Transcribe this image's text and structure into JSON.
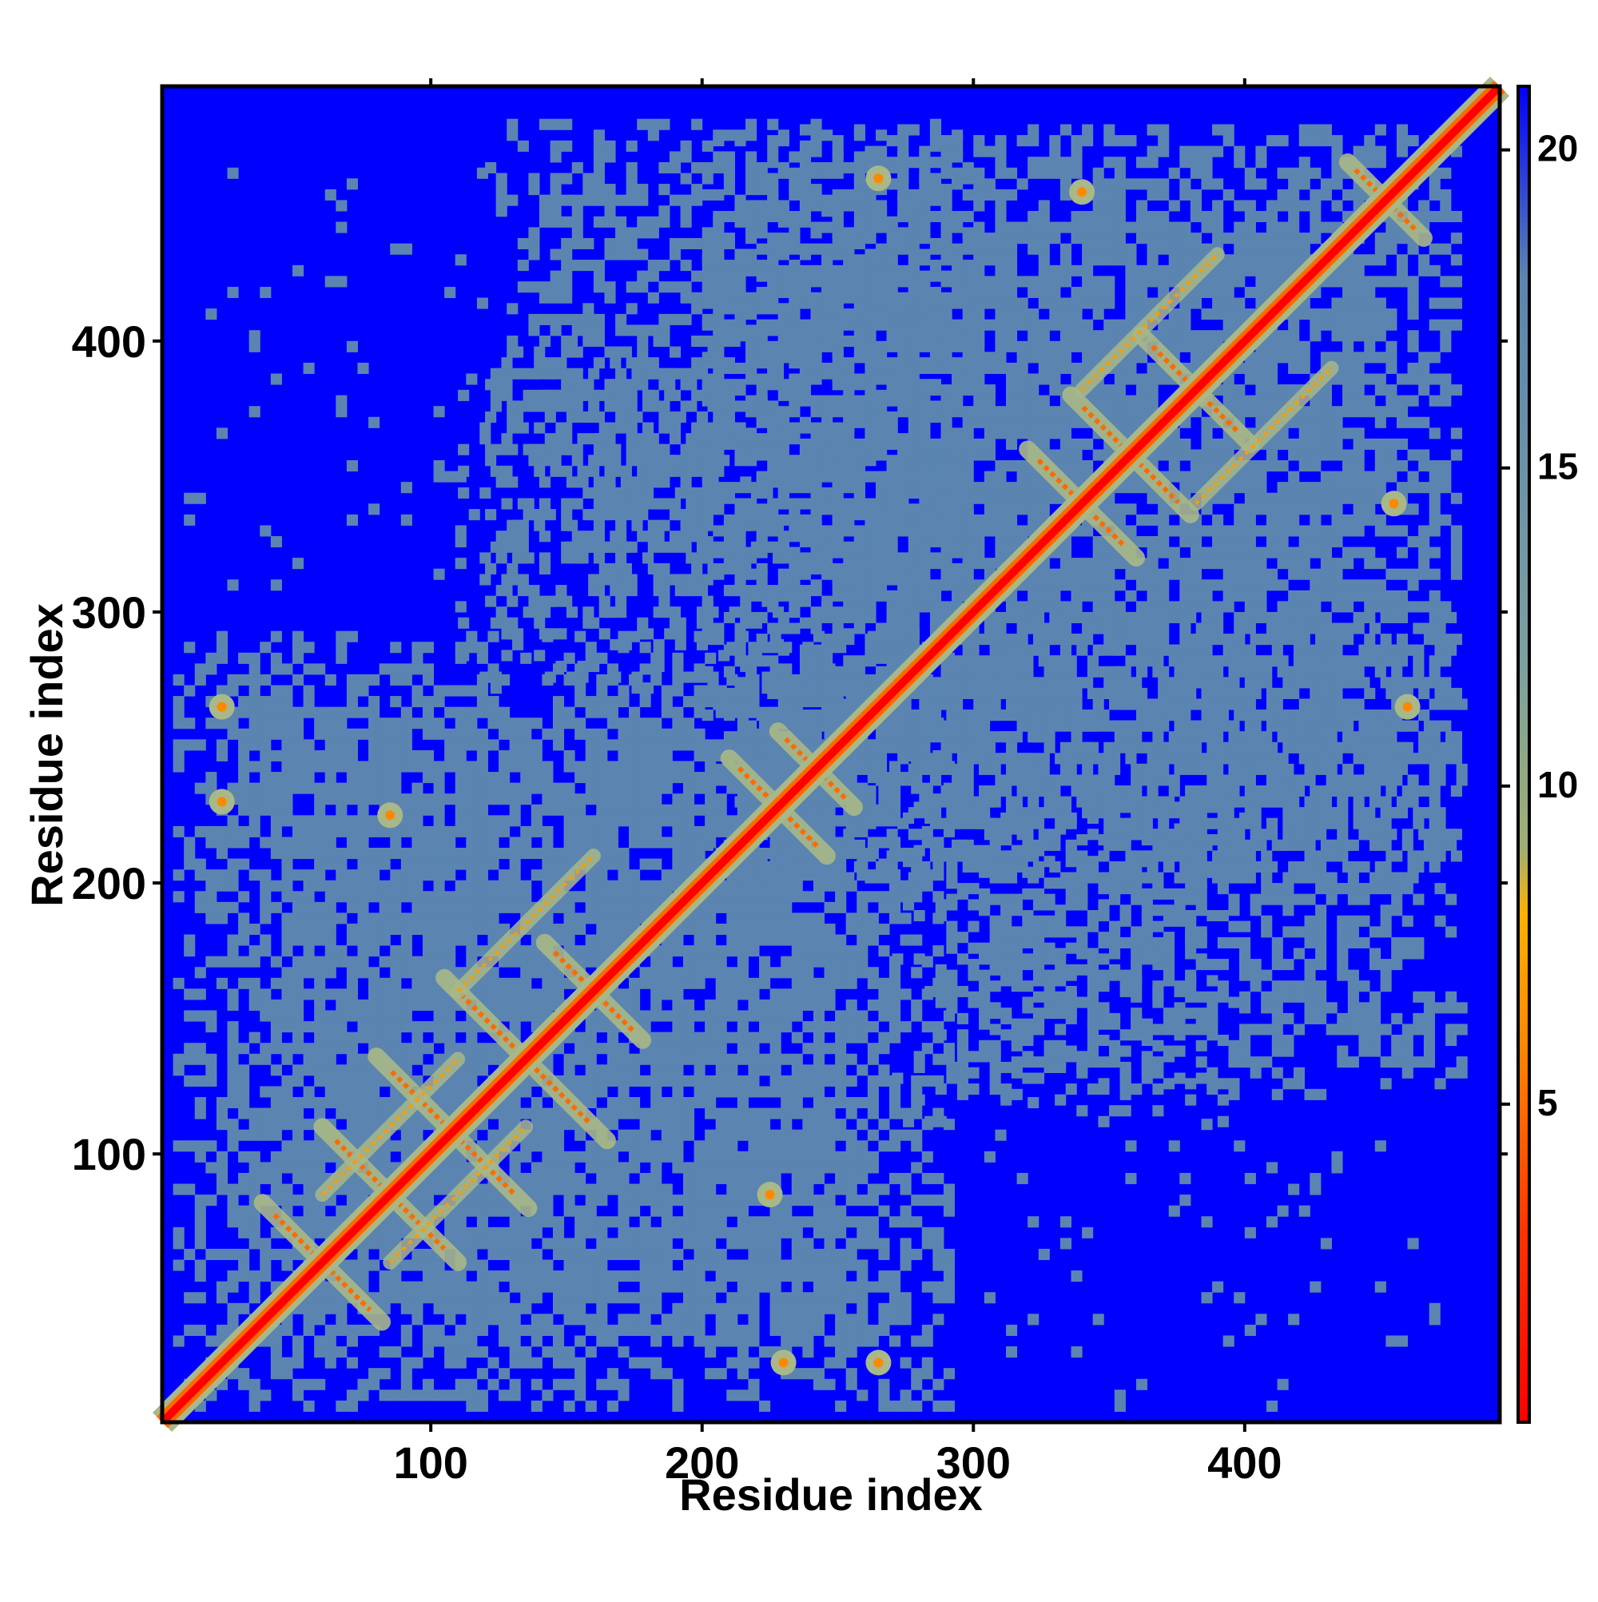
{
  "chart_data": {
    "type": "heatmap",
    "title": "",
    "xlabel": "Residue index",
    "ylabel": "Residue index",
    "xlim": [
      1,
      494
    ],
    "ylim": [
      1,
      494
    ],
    "x_ticks": [
      100,
      200,
      300,
      400
    ],
    "y_ticks": [
      100,
      200,
      300,
      400
    ],
    "colorbar": {
      "min": 0,
      "max": 21,
      "ticks": [
        5,
        10,
        15,
        20
      ],
      "stops": [
        {
          "value": 0,
          "color": "#ff0000"
        },
        {
          "value": 3,
          "color": "#ff3300"
        },
        {
          "value": 6,
          "color": "#ff8800"
        },
        {
          "value": 8,
          "color": "#ffb000"
        },
        {
          "value": 9,
          "color": "#a0b070"
        },
        {
          "value": 12,
          "color": "#7aa0a0"
        },
        {
          "value": 18,
          "color": "#5b85b0"
        },
        {
          "value": 21,
          "color": "#0000ff"
        }
      ]
    },
    "background_color": "#0000ff",
    "contact_color": "#5b85b0",
    "near_color": "#a8b888",
    "diagonal_color": "#ff0000",
    "contact_regions": [
      {
        "x": [
          5,
          290
        ],
        "y": [
          5,
          290
        ],
        "density": 0.85
      },
      {
        "x": [
          200,
          480
        ],
        "y": [
          200,
          480
        ],
        "density": 0.8
      },
      {
        "x": [
          120,
          300
        ],
        "y": [
          290,
          480
        ],
        "density": 0.55
      },
      {
        "x": [
          290,
          480
        ],
        "y": [
          120,
          300
        ],
        "density": 0.55
      },
      {
        "x": [
          110,
          230
        ],
        "y": [
          270,
          400
        ],
        "density": 0.35
      },
      {
        "x": [
          270,
          400
        ],
        "y": [
          110,
          230
        ],
        "density": 0.35
      },
      {
        "x": [
          300,
          470
        ],
        "y": [
          5,
          120
        ],
        "density": 0.05
      },
      {
        "x": [
          5,
          120
        ],
        "y": [
          300,
          470
        ],
        "density": 0.05
      }
    ],
    "antiparallel_strands": [
      {
        "center": 60,
        "half": 22
      },
      {
        "center": 85,
        "half": 25
      },
      {
        "center": 108,
        "half": 28
      },
      {
        "center": 135,
        "half": 30
      },
      {
        "center": 160,
        "half": 18
      },
      {
        "center": 228,
        "half": 18
      },
      {
        "center": 242,
        "half": 14
      },
      {
        "center": 340,
        "half": 20
      },
      {
        "center": 358,
        "half": 22
      },
      {
        "center": 382,
        "half": 20
      },
      {
        "center": 452,
        "half": 14
      }
    ],
    "parallel_strands": [
      {
        "dx": 25,
        "x": [
          60,
          110
        ]
      },
      {
        "dx": -25,
        "x": [
          85,
          135
        ]
      },
      {
        "dx": 50,
        "x": [
          110,
          160
        ]
      },
      {
        "dx": 42,
        "x": [
          340,
          390
        ]
      },
      {
        "dx": -42,
        "x": [
          382,
          432
        ]
      }
    ],
    "contact_spots": [
      {
        "x": 23,
        "y": 265
      },
      {
        "x": 23,
        "y": 230
      },
      {
        "x": 265,
        "y": 23
      },
      {
        "x": 230,
        "y": 23
      },
      {
        "x": 85,
        "y": 225
      },
      {
        "x": 225,
        "y": 85
      },
      {
        "x": 265,
        "y": 460
      },
      {
        "x": 460,
        "y": 265
      },
      {
        "x": 340,
        "y": 455
      },
      {
        "x": 455,
        "y": 340
      }
    ]
  }
}
